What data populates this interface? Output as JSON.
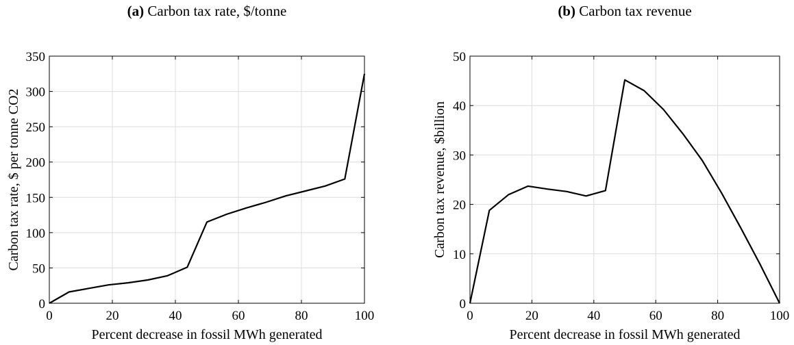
{
  "panels": {
    "a": {
      "tag": "(a)",
      "title": "Carbon tax rate, $/tonne"
    },
    "b": {
      "tag": "(b)",
      "title": "Carbon tax revenue"
    }
  },
  "chart_data": [
    {
      "type": "line",
      "title": "(a) Carbon tax rate, $/tonne",
      "xlabel": "Percent decrease in fossil MWh generated",
      "ylabel": "Carbon tax rate, $ per tonne CO2",
      "xlim": [
        0,
        100
      ],
      "ylim": [
        0,
        350
      ],
      "xticks": [
        0,
        20,
        40,
        60,
        80,
        100
      ],
      "yticks": [
        0,
        50,
        100,
        150,
        200,
        250,
        300,
        350
      ],
      "grid": true,
      "color": "#000000",
      "series": [
        {
          "x": [
            0,
            6.25,
            12.5,
            18.75,
            25,
            31.25,
            37.5,
            43.75,
            50,
            56.25,
            62.5,
            68.75,
            75,
            81.25,
            87.5,
            93.75,
            100
          ],
          "values": [
            0,
            16,
            21,
            26,
            29,
            33,
            39,
            51,
            115,
            126,
            135,
            143,
            152,
            159,
            166,
            176,
            325
          ]
        }
      ]
    },
    {
      "type": "line",
      "title": "(b) Carbon tax revenue",
      "xlabel": "Percent decrease in fossil MWh generated",
      "ylabel": "Carbon tax revenue, $billion",
      "xlim": [
        0,
        100
      ],
      "ylim": [
        0,
        50
      ],
      "xticks": [
        0,
        20,
        40,
        60,
        80,
        100
      ],
      "yticks": [
        0,
        10,
        20,
        30,
        40,
        50
      ],
      "grid": true,
      "color": "#000000",
      "series": [
        {
          "x": [
            0,
            6.25,
            12.5,
            18.75,
            25,
            31.25,
            37.5,
            43.75,
            50,
            56.25,
            62.5,
            68.75,
            75,
            81.25,
            87.5,
            93.75,
            100
          ],
          "values": [
            0,
            18.8,
            22.0,
            23.7,
            23.1,
            22.6,
            21.7,
            22.8,
            45.2,
            43.0,
            39.2,
            34.3,
            28.9,
            22.3,
            15.2,
            7.8,
            0
          ]
        }
      ]
    }
  ]
}
